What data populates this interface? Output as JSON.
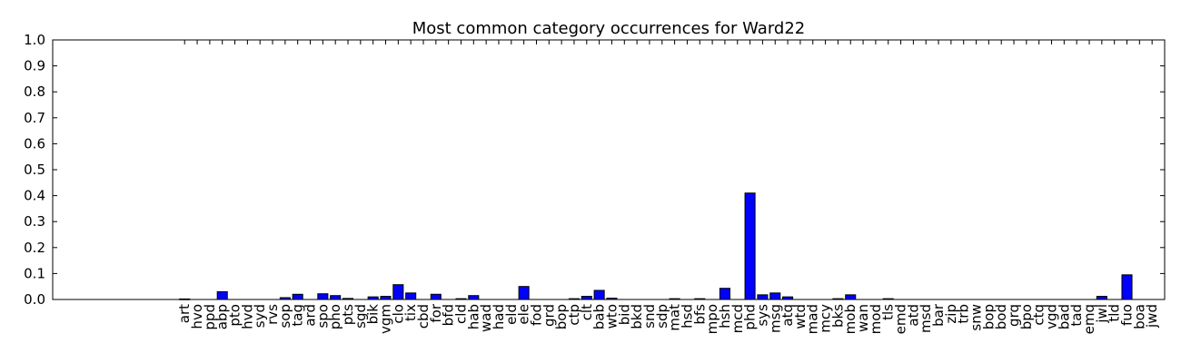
{
  "chart_data": {
    "type": "bar",
    "title": "Most common category occurrences for Ward22",
    "xlabel": "",
    "ylabel": "",
    "ylim": [
      0,
      1.0
    ],
    "yticks": [
      "0.0",
      "0.1",
      "0.2",
      "0.3",
      "0.4",
      "0.5",
      "0.6",
      "0.7",
      "0.8",
      "0.9",
      "1.0"
    ],
    "bar_color": "#0000ff",
    "grid": false,
    "categories": [
      "art",
      "hvo",
      "ppd",
      "abp",
      "pto",
      "hvd",
      "syd",
      "rvs",
      "sop",
      "tag",
      "ard",
      "spo",
      "pho",
      "pts",
      "sgd",
      "bik",
      "vgm",
      "clo",
      "tix",
      "cbd",
      "for",
      "bfd",
      "cld",
      "hab",
      "wad",
      "had",
      "eld",
      "ele",
      "fod",
      "grd",
      "bop",
      "ctp",
      "clt",
      "bab",
      "wto",
      "bid",
      "bkd",
      "snd",
      "sdp",
      "mat",
      "hsd",
      "bfs",
      "mpo",
      "hsh",
      "mcd",
      "phd",
      "sys",
      "msg",
      "atq",
      "wtd",
      "mad",
      "mcy",
      "bks",
      "mob",
      "wan",
      "mod",
      "tls",
      "emd",
      "atd",
      "msd",
      "bar",
      "zip",
      "trb",
      "snw",
      "bop",
      "bod",
      "grq",
      "bpo",
      "ctq",
      "vgd",
      "bad",
      "tad",
      "emq",
      "jwl",
      "tld",
      "fuo",
      "boa",
      "jwd"
    ],
    "values": [
      0.002,
      0,
      0,
      0.03,
      0,
      0,
      0,
      0,
      0.007,
      0.02,
      0,
      0.022,
      0.015,
      0.004,
      0,
      0.01,
      0.012,
      0.057,
      0.025,
      0,
      0.02,
      0,
      0.003,
      0.015,
      0,
      0,
      0,
      0.05,
      0,
      0,
      0,
      0.003,
      0.012,
      0.035,
      0.005,
      0,
      0,
      0,
      0,
      0.003,
      0,
      0.003,
      0,
      0.043,
      0,
      0.41,
      0.018,
      0.025,
      0.01,
      0,
      0,
      0,
      0.003,
      0.018,
      0,
      0,
      0.003,
      0,
      0,
      0,
      0,
      0,
      0,
      0,
      0,
      0,
      0,
      0,
      0,
      0,
      0,
      0,
      0,
      0.012,
      0,
      0.095,
      0,
      0
    ]
  }
}
